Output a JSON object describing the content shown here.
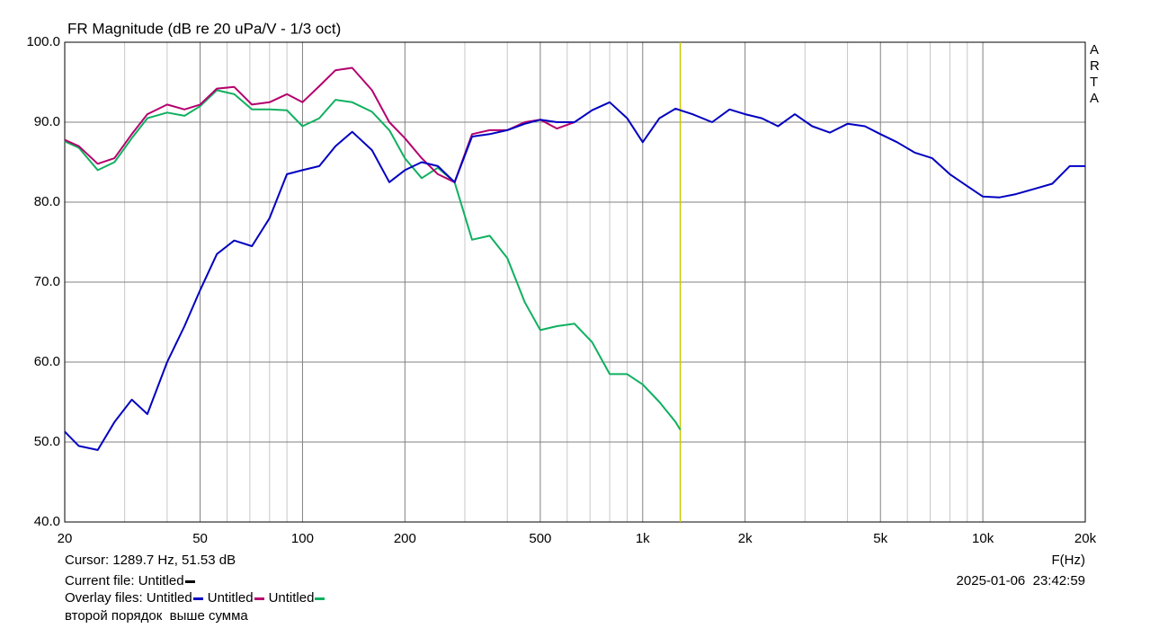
{
  "chart_data": {
    "type": "line",
    "title": "FR Magnitude (dB re 20 uPa/V - 1/3 oct)",
    "side_label": "ARTA",
    "xlabel": "F(Hz)",
    "xscale": "log",
    "xlim": [
      20,
      20000
    ],
    "ylim": [
      40,
      100
    ],
    "xticks": [
      20,
      50,
      100,
      200,
      500,
      {
        "value": 1000,
        "label": "1k"
      },
      {
        "value": 2000,
        "label": "2k"
      },
      {
        "value": 5000,
        "label": "5k"
      },
      {
        "value": 10000,
        "label": "10k"
      },
      {
        "value": 20000,
        "label": "20k"
      }
    ],
    "x_minor_ticks": [
      30,
      40,
      60,
      70,
      80,
      90,
      300,
      400,
      600,
      700,
      800,
      900,
      3000,
      4000,
      6000,
      7000,
      8000,
      9000
    ],
    "yticks": [
      {
        "value": 40,
        "label": "40.0"
      },
      {
        "value": 50,
        "label": "50.0"
      },
      {
        "value": 60,
        "label": "60.0"
      },
      {
        "value": 70,
        "label": "70.0"
      },
      {
        "value": 80,
        "label": "80.0"
      },
      {
        "value": 90,
        "label": "90.0"
      },
      {
        "value": 100,
        "label": "100.0"
      }
    ],
    "grid": true,
    "cursor": {
      "x": 1289.7,
      "color": "#c8c800",
      "label": "Cursor: 1289.7 Hz, 51.53 dB"
    },
    "x": [
      20,
      22,
      25,
      28,
      31.5,
      35,
      40,
      45,
      50,
      56,
      63,
      71,
      80,
      90,
      100,
      112,
      125,
      140,
      160,
      180,
      200,
      224,
      250,
      280,
      315,
      355,
      400,
      450,
      500,
      560,
      630,
      710,
      800,
      900,
      1000,
      1120,
      1250,
      1290,
      1400,
      1600,
      1800,
      2000,
      2240,
      2500,
      2800,
      3150,
      3550,
      4000,
      4500,
      5000,
      5600,
      6300,
      7100,
      8000,
      9000,
      10000,
      11200,
      12500,
      14000,
      16000,
      18000,
      20000
    ],
    "series": [
      {
        "name": "Untitled",
        "color": "#0000c0",
        "values": [
          51.3,
          49.5,
          49,
          52.5,
          55.3,
          53.5,
          60,
          64.5,
          69,
          73.5,
          75.2,
          74.5,
          78,
          83.5,
          84,
          84.5,
          87,
          88.8,
          86.5,
          82.5,
          84,
          85,
          84.5,
          82.5,
          88.2,
          88.5,
          89,
          89.8,
          90.3,
          90,
          90,
          91.5,
          92.5,
          90.5,
          87.5,
          90.5,
          91.7,
          91.5,
          91,
          90,
          91.6,
          91,
          90.5,
          89.5,
          91,
          89.5,
          88.7,
          89.8,
          89.5,
          88.5,
          87.5,
          86.2,
          85.5,
          83.5,
          82,
          80.7,
          80.6,
          81,
          81.6,
          82.3,
          84.5,
          84.5
        ]
      },
      {
        "name": "Untitled",
        "color": "#b4006e",
        "values": [
          87.8,
          87,
          84.8,
          85.5,
          88.5,
          91,
          92.2,
          91.6,
          92.2,
          94.2,
          94.4,
          92.2,
          92.5,
          93.5,
          92.5,
          94.5,
          96.5,
          96.8,
          94,
          90,
          88,
          85.5,
          83.5,
          82.5,
          88.5,
          89,
          89,
          90,
          90.3,
          89.2,
          90,
          null,
          null,
          null,
          null,
          null,
          null,
          null,
          null,
          null,
          null,
          null,
          null,
          null,
          null,
          null,
          null,
          null,
          null,
          null,
          null,
          null,
          null,
          null,
          null,
          null,
          null,
          null,
          null,
          null,
          null,
          null
        ]
      },
      {
        "name": "Untitled",
        "color": "#10b060",
        "values": [
          87.6,
          86.8,
          84,
          85,
          88,
          90.5,
          91.2,
          90.8,
          92,
          94,
          93.5,
          91.6,
          91.6,
          91.5,
          89.5,
          90.5,
          92.8,
          92.5,
          91.3,
          89,
          85.5,
          83,
          84.3,
          82.5,
          75.3,
          75.8,
          73,
          67.5,
          64,
          64.5,
          64.8,
          62.5,
          58.5,
          58.5,
          57.2,
          55,
          52.5,
          51.53,
          null,
          null,
          null,
          null,
          null,
          null,
          null,
          null,
          null,
          null,
          null,
          null,
          null,
          null,
          null,
          null,
          null,
          null,
          null,
          null,
          null,
          null,
          null,
          null
        ]
      }
    ]
  },
  "footer": {
    "current_file": "Current file: Untitled",
    "current_file_color": "#000000",
    "overlay_label": "Overlay files:",
    "date": "2025-01-06  23:42:59",
    "note": "второй порядок  выше сумма"
  }
}
